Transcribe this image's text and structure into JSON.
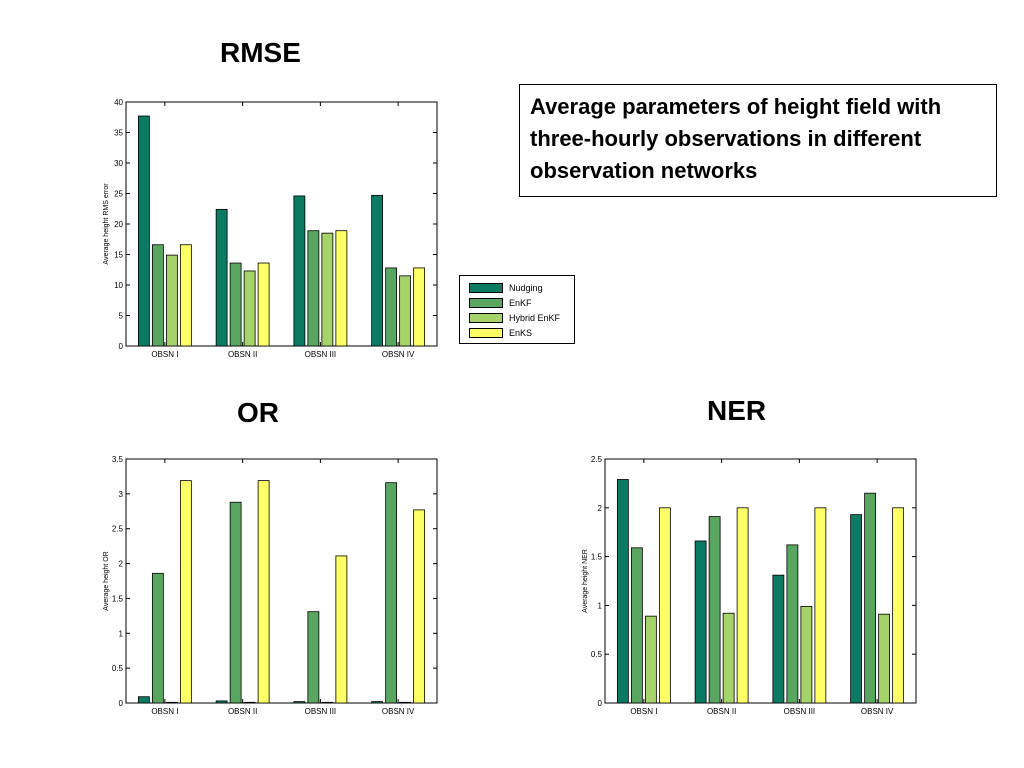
{
  "titles": {
    "rmse": "RMSE",
    "or": "OR",
    "ner": "NER"
  },
  "infobox": {
    "text": "Average parameters of height field with three-hourly observations in different observation networks"
  },
  "colors": {
    "Nudging": "#0b7a63",
    "EnKF": "#58a660",
    "Hybrid EnKF": "#a6d26a",
    "EnKS": "#ffff66"
  },
  "legend": {
    "items": [
      "Nudging",
      "EnKF",
      "Hybrid EnKF",
      "EnKS"
    ],
    "placement": "right of RMSE chart"
  },
  "chart_data": [
    {
      "type": "bar",
      "title": "RMSE",
      "categories": [
        "OBSN I",
        "OBSN II",
        "OBSN III",
        "OBSN IV"
      ],
      "ylabel": "Average height RMS error",
      "ylim": [
        0,
        40
      ],
      "yticks": [
        0,
        5,
        10,
        15,
        20,
        25,
        30,
        35,
        40
      ],
      "series": [
        {
          "name": "Nudging",
          "values": [
            37.7,
            22.4,
            24.6,
            24.7
          ]
        },
        {
          "name": "EnKF",
          "values": [
            16.6,
            13.6,
            18.9,
            12.8
          ]
        },
        {
          "name": "Hybrid EnKF",
          "values": [
            14.9,
            12.3,
            18.5,
            11.5
          ]
        },
        {
          "name": "EnKS",
          "values": [
            16.6,
            13.6,
            18.9,
            12.8
          ]
        }
      ]
    },
    {
      "type": "bar",
      "title": "OR",
      "categories": [
        "OBSN I",
        "OBSN II",
        "OBSN III",
        "OBSN IV"
      ],
      "ylabel": "Average height OR",
      "ylim": [
        0,
        3.5
      ],
      "yticks": [
        0,
        0.5,
        1,
        1.5,
        2,
        2.5,
        3,
        3.5
      ],
      "series": [
        {
          "name": "Nudging",
          "values": [
            0.09,
            0.03,
            0.02,
            0.02
          ]
        },
        {
          "name": "EnKF",
          "values": [
            1.86,
            2.88,
            1.31,
            3.16
          ]
        },
        {
          "name": "Hybrid EnKF",
          "values": [
            0.01,
            0.01,
            0.01,
            0.01
          ]
        },
        {
          "name": "EnKS",
          "values": [
            3.19,
            3.19,
            2.11,
            2.77
          ]
        }
      ]
    },
    {
      "type": "bar",
      "title": "NER",
      "categories": [
        "OBSN I",
        "OBSN II",
        "OBSN III",
        "OBSN IV"
      ],
      "ylabel": "Average height NER",
      "ylim": [
        0,
        2.5
      ],
      "yticks": [
        0,
        0.5,
        1,
        1.5,
        2,
        2.5
      ],
      "series": [
        {
          "name": "Nudging",
          "values": [
            2.29,
            1.66,
            1.31,
            1.93
          ]
        },
        {
          "name": "EnKF",
          "values": [
            1.59,
            1.91,
            1.62,
            2.15
          ]
        },
        {
          "name": "Hybrid EnKF",
          "values": [
            0.89,
            0.92,
            0.99,
            0.91
          ]
        },
        {
          "name": "EnKS",
          "values": [
            2.0,
            2.0,
            2.0,
            2.0
          ]
        }
      ]
    }
  ]
}
